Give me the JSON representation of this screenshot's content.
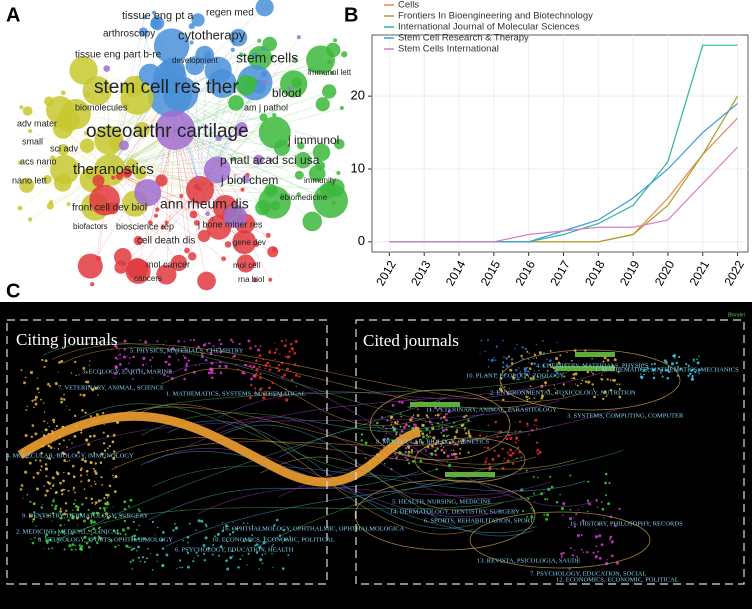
{
  "panel_labels": [
    "A",
    "B",
    "C"
  ],
  "network": {
    "labels": [
      "tissue eng pt a",
      "regen med",
      "arthroscopy",
      "cytotherapy",
      "tissue eng part b-re",
      "development",
      "stem cells",
      "immunol lett",
      "stem cell res ther",
      "blood",
      "biomolecules",
      "am j pathol",
      "adv mater",
      "osteoarthr cartilage",
      "j immunol",
      "small",
      "sci adv",
      "acs nano",
      "p natl acad sci usa",
      "nano lett",
      "theranostics",
      "j biol chem",
      "immunity",
      "ebiomedicine",
      "front cell dev biol",
      "ann rheum dis",
      "biofactors",
      "bioscience rep",
      "j bone miner res",
      "cell death dis",
      "gene dev",
      "mol cancer",
      "mol cell",
      "cancers",
      "rna biol"
    ]
  },
  "chart_data": {
    "type": "line",
    "x": [
      2012,
      2013,
      2014,
      2015,
      2016,
      2017,
      2018,
      2019,
      2020,
      2021,
      2022
    ],
    "xticks": [
      2012,
      2013,
      2014,
      2015,
      2016,
      2017,
      2018,
      2019,
      2020,
      2021,
      2022
    ],
    "xlim": [
      2011.5,
      2022.3
    ],
    "ylim": [
      -1.4,
      28.4
    ],
    "yticks": [
      0,
      10,
      20
    ],
    "grid": true,
    "legend": "top-left",
    "series": [
      {
        "name": "Cells",
        "color": "#e8855a",
        "values": [
          0,
          0,
          0,
          0,
          0,
          0,
          0,
          1,
          6,
          12,
          17
        ]
      },
      {
        "name": "Frontiers In Bioengineering and Biotechnology",
        "color": "#a8a020",
        "values": [
          0,
          0,
          0,
          0,
          0,
          0,
          0,
          1,
          5,
          12,
          20
        ]
      },
      {
        "name": "International Journal of Molecular Sciences",
        "color": "#2db39c",
        "values": [
          0,
          0,
          0,
          0,
          0,
          1,
          2.5,
          5,
          11,
          27,
          27
        ]
      },
      {
        "name": "Stem Cell Research & Therapy",
        "color": "#3a9ad9",
        "values": [
          0,
          0,
          0,
          0,
          0,
          1.5,
          3,
          6,
          10,
          15,
          19
        ]
      },
      {
        "name": "Stem Cells International",
        "color": "#d67fc7",
        "values": [
          0,
          0,
          0,
          0,
          1,
          1.5,
          2,
          2,
          3,
          8,
          13
        ]
      }
    ]
  },
  "overlay": {
    "citing_title": "Citing journals",
    "cited_title": "Cited journals",
    "method": "Blondel",
    "citing": [
      "5. PHYSICS, MATERIALS, CHEMISTRY",
      "3. ECOLOGY, EARTH, MARINE",
      "7. VETERINARY, ANIMAL, SCIENCE",
      "1. MATHEMATICS, SYSTEMS, MATHEMATICAL",
      "4. MOLECULAR, BIOLOGY, IMMUNOLOGY",
      "9. DENTISTRY, DERMATOLOGY, SURGERY",
      "2. MEDICINE, MEDICAL, CLINICAL",
      "8. NEUROLOGY, SPORTS, OPHTHALMOLOGY",
      "16. OPHTHALMOLOGY, OPHTHALMIC, OPHTHALMOLOGICA",
      "10. ECONOMICS, ECONOMIC, POLITICAL",
      "6. PSYCHOLOGY, EDUCATION, HEALTH"
    ],
    "cited": [
      "10. PLANT, ECOLOGY, ZOOLOGY",
      "4. CHEMISTRY, MATERIALS, PHYSICS",
      "1. MATHEMATICS, MATHEMATICS, MECHANICS",
      "2. ENVIRONMENTAL, TOXICOLOGY, NUTRITION",
      "11. VETERINARY, ANIMAL, PARASITOLOGY",
      "3. SYSTEMS, COMPUTING, COMPUTER",
      "8. MOLECULAR, BIOLOGY, GENETICS",
      "5. HEALTH, NURSING, MEDICINE",
      "14. DERMATOLOGY, DENTISTRY, SURGERY",
      "6. SPORTS, REHABILITATION, SPORT",
      "16. HISTORY, PHILOSOPHY, RECORDS",
      "13. REVISTA, PSICOLOGIA, SAUDE",
      "7. PSYCHOLOGY, EDUCATION, SOCIAL",
      "12. ECONOMICS, ECONOMIC, POLITICAL"
    ]
  }
}
